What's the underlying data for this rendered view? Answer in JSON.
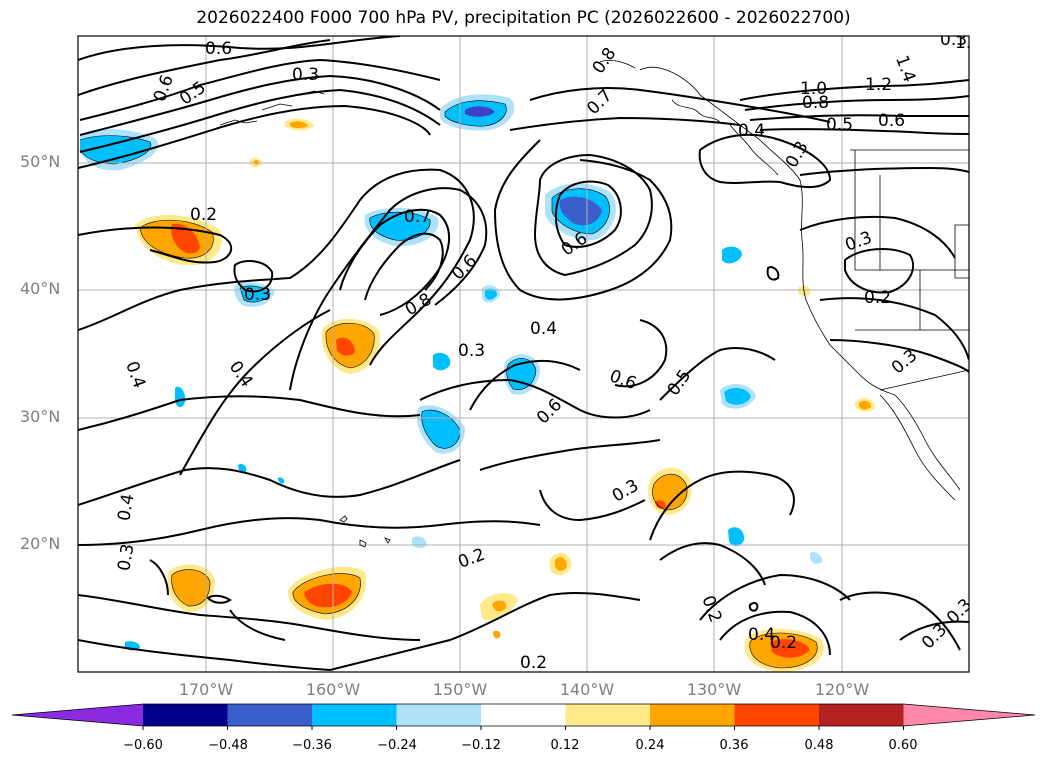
{
  "title": "2026022400 F000 700 hPa PV, precipitation PC (2026022600 - 2026022700)",
  "lat_labels": [
    "50°N",
    "40°N",
    "30°N",
    "20°N"
  ],
  "lon_labels": [
    "170°W",
    "160°W",
    "150°W",
    "140°W",
    "130°W",
    "120°W"
  ],
  "contour_labels": [
    "0.6",
    "0.6",
    "0.5",
    "0.3",
    "0.8",
    "0.7",
    "1.0",
    "1.2",
    "1.4",
    "0.8",
    "0.5",
    "0.6",
    "0.4",
    "0.3",
    "0.2",
    "0.7",
    "0.6",
    "0.3",
    "0.8",
    "0.6",
    "0.4",
    "0.3",
    "0.3",
    "0.2",
    "0.4",
    "0.4",
    "0.3",
    "0.6",
    "0.6",
    "0.5",
    "0.4",
    "0.2",
    "0.3",
    "0.3",
    "0.2",
    "0.2",
    "0.2",
    "0.3",
    "0.3",
    "0.4",
    "0.3",
    "1.4"
  ],
  "colorbar": {
    "ticks": [
      "−0.60",
      "−0.48",
      "−0.36",
      "−0.24",
      "−0.12",
      "0.12",
      "0.24",
      "0.36",
      "0.48",
      "0.60"
    ],
    "colors": [
      "#8a2be2",
      "#00008b",
      "#3a5fcd",
      "#00bfff",
      "#aee2fa",
      "#ffffff",
      "#ffe98a",
      "#ffa500",
      "#ff4500",
      "#b22222",
      "#ff88aa"
    ]
  },
  "fill_colors": {
    "neg_light": "#aee2fa",
    "neg_mid": "#00bfff",
    "neg_dark": "#3a5fcd",
    "neg_darkest": "#4040c8",
    "pos_light": "#ffe98a",
    "pos_mid": "#ffa500",
    "pos_dark": "#ff4500"
  }
}
